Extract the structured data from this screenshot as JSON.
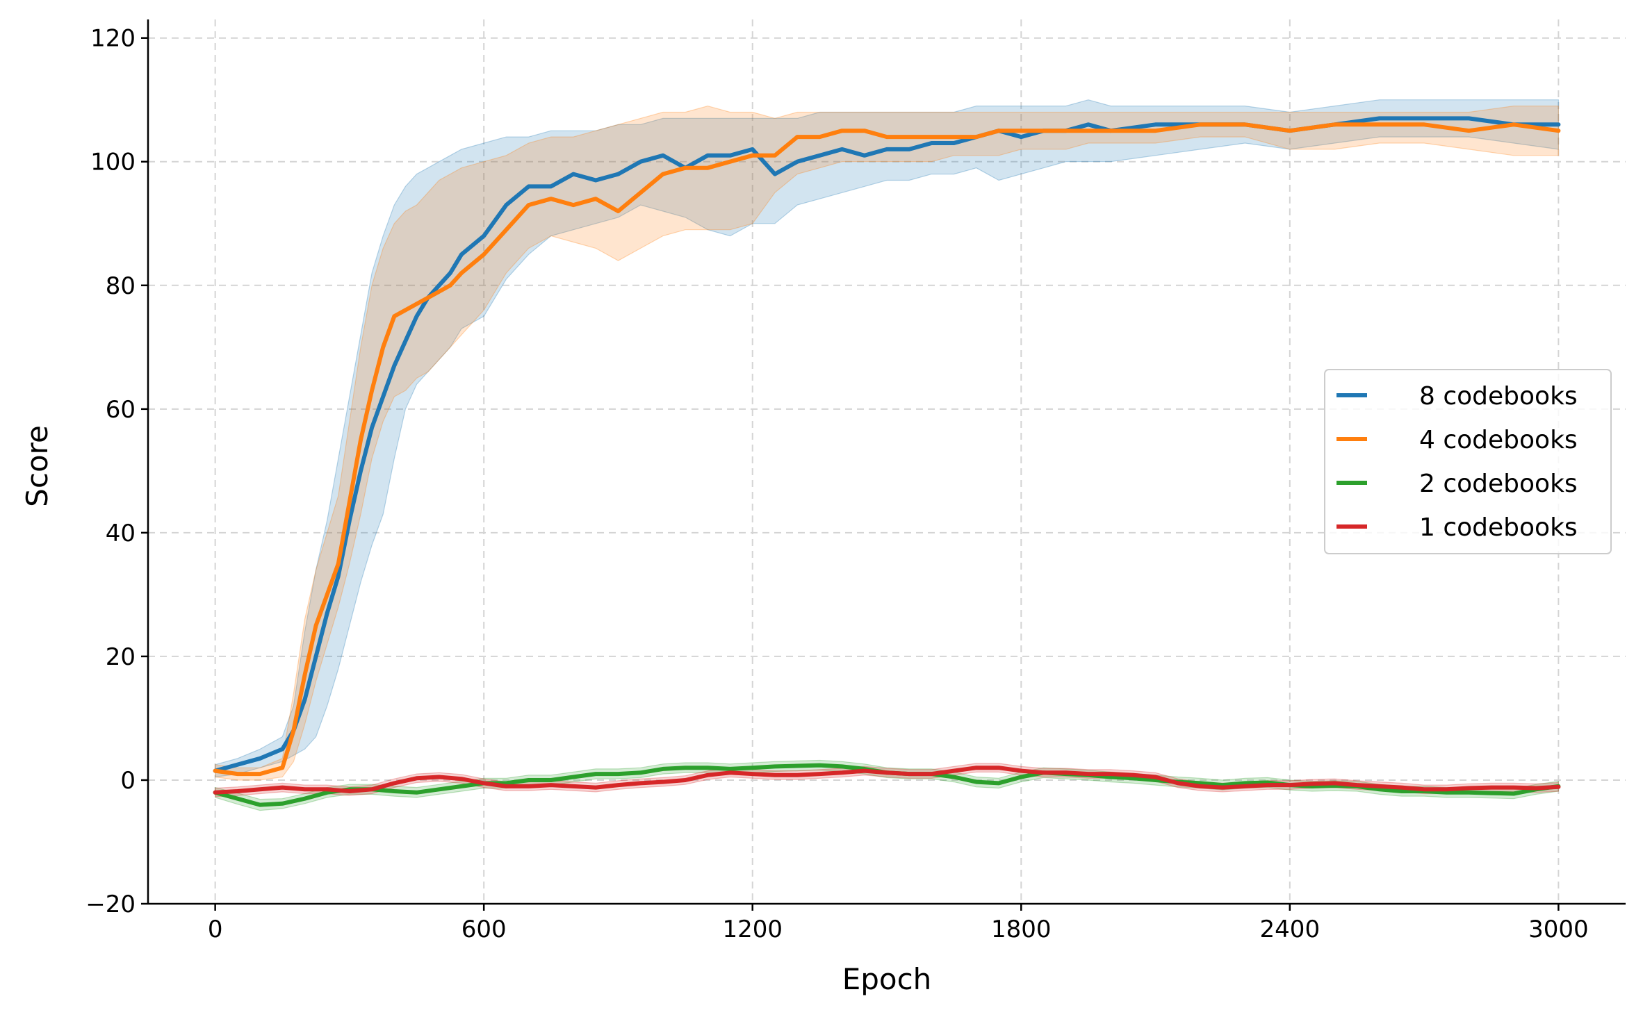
{
  "chart_data": {
    "type": "line",
    "xlabel": "Epoch",
    "ylabel": "Score",
    "xlim": [
      -150,
      3150
    ],
    "ylim": [
      -20,
      123
    ],
    "xticks": [
      0,
      600,
      1200,
      1800,
      2400,
      3000
    ],
    "yticks": [
      -20,
      0,
      20,
      40,
      60,
      80,
      100,
      120
    ],
    "xtick_labels": [
      "0",
      "600",
      "1200",
      "1800",
      "2400",
      "3000"
    ],
    "ytick_labels": [
      "−20",
      "0",
      "20",
      "40",
      "60",
      "80",
      "100",
      "120"
    ],
    "grid": true,
    "legend_position": "center-right",
    "series": [
      {
        "name": "8 codebooks",
        "color": "#1f77b4",
        "x": [
          0,
          50,
          100,
          150,
          175,
          200,
          225,
          250,
          275,
          300,
          325,
          350,
          375,
          400,
          425,
          450,
          475,
          500,
          525,
          550,
          600,
          650,
          700,
          750,
          800,
          850,
          900,
          950,
          1000,
          1050,
          1100,
          1150,
          1200,
          1250,
          1300,
          1350,
          1400,
          1450,
          1500,
          1550,
          1600,
          1650,
          1700,
          1750,
          1800,
          1850,
          1900,
          1950,
          2000,
          2100,
          2200,
          2300,
          2400,
          2500,
          2600,
          2700,
          2800,
          2900,
          3000
        ],
        "y": [
          1.5,
          2.5,
          3.5,
          5,
          8,
          13,
          20,
          27,
          33,
          42,
          50,
          57,
          62,
          67,
          71,
          75,
          78,
          80,
          82,
          85,
          88,
          93,
          96,
          96,
          98,
          97,
          98,
          100,
          101,
          99,
          101,
          101,
          102,
          98,
          100,
          101,
          102,
          101,
          102,
          102,
          103,
          103,
          104,
          105,
          104,
          105,
          105,
          106,
          105,
          106,
          106,
          106,
          105,
          106,
          107,
          107,
          107,
          106,
          106
        ],
        "lower": [
          0.5,
          1,
          2,
          3,
          4,
          5,
          7,
          12,
          18,
          25,
          32,
          38,
          43,
          52,
          60,
          64,
          66,
          68,
          70,
          73,
          75,
          81,
          85,
          88,
          89,
          90,
          91,
          93,
          92,
          91,
          89,
          88,
          90,
          90,
          93,
          94,
          95,
          96,
          97,
          97,
          98,
          98,
          99,
          97,
          98,
          99,
          100,
          100,
          100,
          101,
          102,
          103,
          102,
          103,
          104,
          104,
          104,
          103,
          102
        ],
        "upper": [
          2.5,
          3.5,
          5,
          7,
          12,
          24,
          34,
          42,
          52,
          62,
          72,
          82,
          88,
          93,
          96,
          98,
          99,
          100,
          101,
          102,
          103,
          104,
          104,
          105,
          105,
          105,
          106,
          106,
          107,
          107,
          107,
          107,
          107,
          107,
          107,
          108,
          108,
          108,
          108,
          108,
          108,
          108,
          109,
          109,
          109,
          109,
          109,
          110,
          109,
          109,
          109,
          109,
          108,
          109,
          110,
          110,
          110,
          110,
          110
        ]
      },
      {
        "name": "4 codebooks",
        "color": "#ff7f0e",
        "x": [
          0,
          50,
          100,
          150,
          175,
          200,
          225,
          250,
          275,
          300,
          325,
          350,
          375,
          400,
          425,
          450,
          475,
          500,
          525,
          550,
          600,
          650,
          700,
          750,
          800,
          850,
          900,
          950,
          1000,
          1050,
          1100,
          1150,
          1200,
          1250,
          1300,
          1350,
          1400,
          1450,
          1500,
          1550,
          1600,
          1650,
          1700,
          1750,
          1800,
          1850,
          1900,
          1950,
          2000,
          2100,
          2200,
          2300,
          2400,
          2500,
          2600,
          2700,
          2800,
          2900,
          3000
        ],
        "y": [
          1.5,
          1,
          1,
          2,
          8,
          17,
          25,
          30,
          35,
          45,
          55,
          63,
          70,
          75,
          76,
          77,
          78,
          79,
          80,
          82,
          85,
          89,
          93,
          94,
          93,
          94,
          92,
          95,
          98,
          99,
          99,
          100,
          101,
          101,
          104,
          104,
          105,
          105,
          104,
          104,
          104,
          104,
          104,
          105,
          105,
          105,
          105,
          105,
          105,
          105,
          106,
          106,
          105,
          106,
          106,
          106,
          105,
          106,
          105
        ],
        "lower": [
          0.5,
          0,
          0,
          0.5,
          3,
          9,
          16,
          22,
          28,
          35,
          43,
          52,
          58,
          62,
          63,
          65,
          66,
          68,
          70,
          72,
          76,
          82,
          86,
          88,
          87,
          86,
          84,
          86,
          88,
          89,
          89,
          89,
          90,
          95,
          98,
          99,
          100,
          100,
          100,
          100,
          100,
          101,
          101,
          101,
          102,
          102,
          102,
          103,
          103,
          103,
          104,
          104,
          102,
          102,
          103,
          103,
          102,
          101,
          101
        ],
        "upper": [
          2.5,
          2,
          2,
          3.5,
          14,
          26,
          34,
          40,
          46,
          58,
          70,
          80,
          86,
          90,
          92,
          93,
          95,
          97,
          98,
          99,
          100,
          101,
          103,
          104,
          104,
          105,
          106,
          107,
          108,
          108,
          109,
          108,
          108,
          107,
          108,
          108,
          108,
          108,
          108,
          108,
          108,
          108,
          108,
          108,
          108,
          108,
          108,
          108,
          108,
          108,
          108,
          108,
          108,
          108,
          108,
          108,
          108,
          109,
          109
        ]
      },
      {
        "name": "2 codebooks",
        "color": "#2ca02c",
        "x": [
          0,
          50,
          100,
          150,
          200,
          250,
          300,
          350,
          400,
          450,
          500,
          550,
          600,
          650,
          700,
          750,
          800,
          850,
          900,
          950,
          1000,
          1050,
          1100,
          1150,
          1200,
          1250,
          1300,
          1350,
          1400,
          1450,
          1500,
          1550,
          1600,
          1650,
          1700,
          1750,
          1800,
          1850,
          1900,
          1950,
          2000,
          2050,
          2100,
          2150,
          2200,
          2250,
          2300,
          2350,
          2400,
          2450,
          2500,
          2550,
          2600,
          2650,
          2700,
          2750,
          2800,
          2850,
          2900,
          2950,
          3000
        ],
        "y": [
          -2,
          -3,
          -4,
          -3.8,
          -3,
          -2,
          -1.5,
          -1.5,
          -1.8,
          -2,
          -1.5,
          -1,
          -0.5,
          -0.5,
          0,
          0,
          0.5,
          1,
          1,
          1.2,
          1.8,
          2,
          2,
          1.8,
          2,
          2.2,
          2.3,
          2.4,
          2.2,
          1.8,
          1.2,
          1,
          1,
          0.5,
          -0.3,
          -0.5,
          0.5,
          1.2,
          1,
          0.8,
          0.5,
          0.3,
          0,
          -0.3,
          -0.5,
          -0.8,
          -0.5,
          -0.4,
          -0.8,
          -1,
          -0.9,
          -1,
          -1.5,
          -1.8,
          -1.8,
          -2,
          -2,
          -2.1,
          -2.2,
          -1.5,
          -1
        ],
        "lower": [
          -2.8,
          -3.9,
          -4.9,
          -4.6,
          -3.8,
          -2.8,
          -2.3,
          -2.3,
          -2.6,
          -2.8,
          -2.3,
          -1.8,
          -1.3,
          -1.3,
          -0.8,
          -0.8,
          -0.3,
          0.2,
          0.2,
          0.4,
          1,
          1.2,
          1.2,
          1,
          1.2,
          1.4,
          1.5,
          1.6,
          1.4,
          1,
          0.4,
          0.2,
          0.2,
          -0.3,
          -1.1,
          -1.3,
          -0.3,
          0.4,
          0.2,
          0,
          -0.3,
          -0.5,
          -0.8,
          -1.1,
          -1.3,
          -1.6,
          -1.3,
          -1.2,
          -1.6,
          -1.8,
          -1.7,
          -1.8,
          -2.3,
          -2.6,
          -2.6,
          -2.8,
          -2.8,
          -2.9,
          -3,
          -2.3,
          -1.8
        ],
        "upper": [
          -1.2,
          -2.1,
          -3.1,
          -3,
          -2.2,
          -1.2,
          -0.7,
          -0.7,
          -1,
          -1.2,
          -0.7,
          -0.2,
          0.3,
          0.3,
          0.8,
          0.8,
          1.3,
          1.8,
          1.8,
          2,
          2.6,
          2.8,
          2.8,
          2.6,
          2.8,
          3,
          3.1,
          3.2,
          3,
          2.6,
          2,
          1.8,
          1.8,
          1.3,
          0.5,
          0.3,
          1.3,
          2,
          1.8,
          1.6,
          1.3,
          1.1,
          0.8,
          0.5,
          0.3,
          0,
          0.3,
          0.4,
          0,
          -0.2,
          -0.1,
          -0.2,
          -0.7,
          -1,
          -1,
          -1.2,
          -1.2,
          -1.3,
          -1.4,
          -0.7,
          -0.2
        ]
      },
      {
        "name": "1 codebooks",
        "color": "#d62728",
        "x": [
          0,
          50,
          100,
          150,
          200,
          250,
          300,
          350,
          400,
          450,
          500,
          550,
          600,
          650,
          700,
          750,
          800,
          850,
          900,
          950,
          1000,
          1050,
          1100,
          1150,
          1200,
          1250,
          1300,
          1350,
          1400,
          1450,
          1500,
          1550,
          1600,
          1650,
          1700,
          1750,
          1800,
          1850,
          1900,
          1950,
          2000,
          2050,
          2100,
          2150,
          2200,
          2250,
          2300,
          2350,
          2400,
          2450,
          2500,
          2550,
          2600,
          2650,
          2700,
          2750,
          2800,
          2850,
          2900,
          2950,
          3000
        ],
        "y": [
          -2,
          -1.8,
          -1.5,
          -1.2,
          -1.5,
          -1.5,
          -1.8,
          -1.5,
          -0.5,
          0.3,
          0.5,
          0.2,
          -0.5,
          -1,
          -1,
          -0.8,
          -1,
          -1.2,
          -0.8,
          -0.5,
          -0.3,
          0,
          0.8,
          1.2,
          1,
          0.8,
          0.8,
          1,
          1.2,
          1.5,
          1.2,
          1,
          1,
          1.5,
          2,
          2,
          1.5,
          1.2,
          1.2,
          1,
          1,
          0.8,
          0.5,
          -0.5,
          -1,
          -1.2,
          -1,
          -0.8,
          -0.8,
          -0.6,
          -0.5,
          -0.8,
          -1,
          -1.2,
          -1.5,
          -1.5,
          -1.3,
          -1.2,
          -1.2,
          -1.3,
          -1.1
        ],
        "lower": [
          -2.7,
          -2.5,
          -2.2,
          -1.9,
          -2.2,
          -2.2,
          -2.5,
          -2.2,
          -1.2,
          -0.4,
          -0.2,
          -0.5,
          -1.2,
          -1.7,
          -1.7,
          -1.5,
          -1.7,
          -1.9,
          -1.5,
          -1.2,
          -1,
          -0.7,
          0.1,
          0.5,
          0.3,
          0.1,
          0.1,
          0.3,
          0.5,
          0.8,
          0.5,
          0.3,
          0.3,
          0.8,
          1.3,
          1.3,
          0.8,
          0.5,
          0.5,
          0.3,
          0.3,
          0.1,
          -0.2,
          -1.2,
          -1.7,
          -1.9,
          -1.7,
          -1.5,
          -1.5,
          -1.3,
          -1.2,
          -1.5,
          -1.7,
          -1.9,
          -2.2,
          -2.2,
          -2,
          -1.9,
          -1.9,
          -2,
          -1.8
        ],
        "upper": [
          -1.3,
          -1.1,
          -0.8,
          -0.5,
          -0.8,
          -0.8,
          -1.1,
          -0.8,
          0.2,
          1,
          1.2,
          0.9,
          0.2,
          -0.3,
          -0.3,
          -0.1,
          -0.3,
          -0.5,
          -0.1,
          0.2,
          0.4,
          0.7,
          1.5,
          1.9,
          1.7,
          1.5,
          1.5,
          1.7,
          1.9,
          2.2,
          1.9,
          1.7,
          1.7,
          2.2,
          2.7,
          2.7,
          2.2,
          1.9,
          1.9,
          1.7,
          1.7,
          1.5,
          1.2,
          0.2,
          -0.3,
          -0.5,
          -0.3,
          -0.1,
          -0.1,
          0.1,
          0.2,
          -0.1,
          -0.3,
          -0.5,
          -0.8,
          -0.8,
          -0.6,
          -0.5,
          -0.5,
          -0.6,
          -0.4
        ]
      }
    ]
  }
}
